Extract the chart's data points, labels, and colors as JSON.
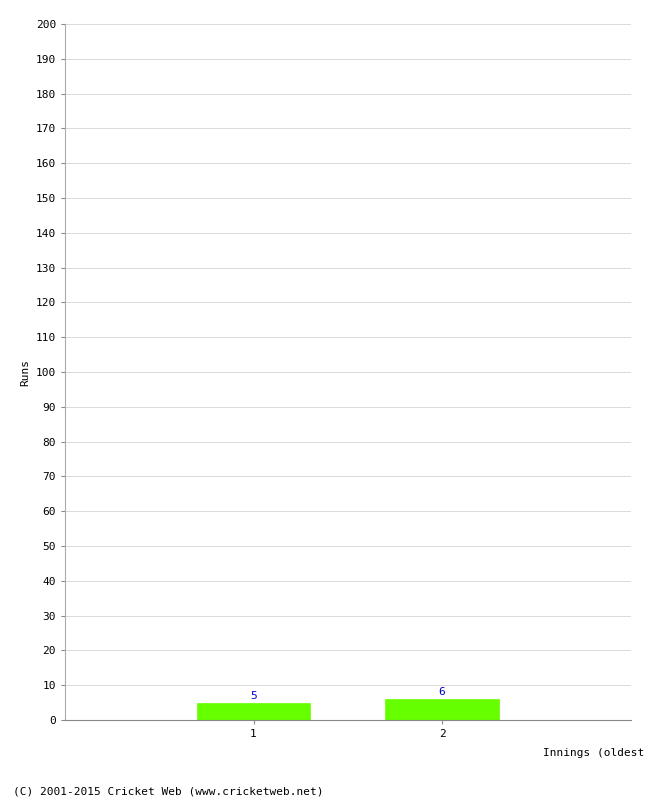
{
  "title": "",
  "innings": [
    1,
    2
  ],
  "runs": [
    5,
    6
  ],
  "bar_color": "#66ff00",
  "bar_edge_color": "#66ff00",
  "label_color": "#0000cc",
  "xlabel": "Innings (oldest to newest)",
  "ylabel": "Runs",
  "ylim": [
    0,
    200
  ],
  "xlim": [
    0,
    3
  ],
  "ytick_step": 10,
  "background_color": "#ffffff",
  "footer": "(C) 2001-2015 Cricket Web (www.cricketweb.net)",
  "grid_color": "#cccccc",
  "bar_width": 0.6,
  "label_fontsize": 8,
  "axis_fontsize": 8,
  "tick_fontsize": 8,
  "footer_fontsize": 8
}
